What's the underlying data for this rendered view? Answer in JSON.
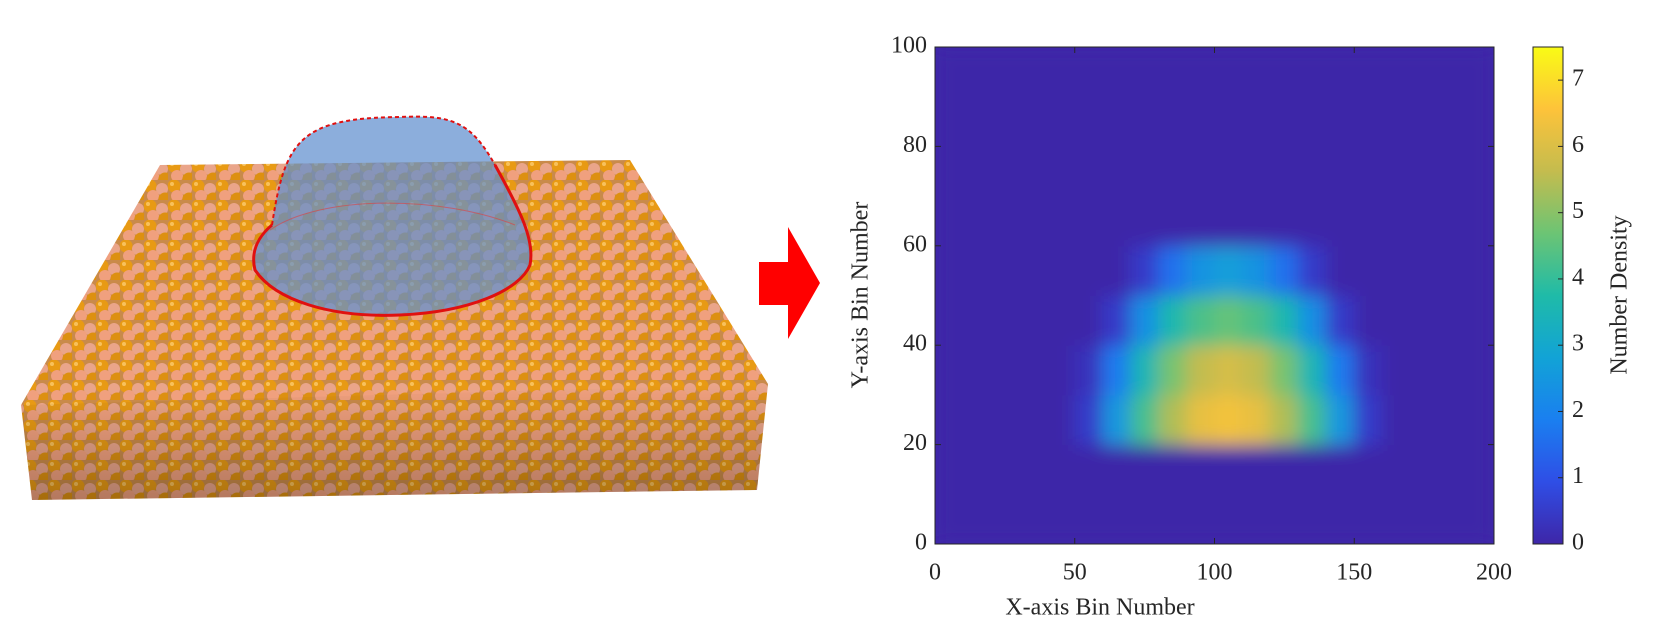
{
  "chart_data": {
    "type": "heatmap",
    "xlabel": "X-axis Bin Number",
    "ylabel": "Y-axis Bin Number",
    "colorbar_label": "Number Density",
    "x": [
      5,
      15,
      25,
      35,
      45,
      55,
      65,
      75,
      85,
      95,
      105,
      115,
      125,
      135,
      145,
      155,
      165,
      175,
      185,
      195
    ],
    "y": [
      5,
      15,
      25,
      35,
      45,
      55,
      65,
      75,
      85,
      95
    ],
    "z": [
      [
        0,
        0,
        0,
        0,
        0,
        0,
        0,
        0,
        0,
        0,
        0,
        0,
        0,
        0,
        0,
        0,
        0,
        0,
        0,
        0
      ],
      [
        0,
        0,
        0,
        0,
        0,
        0,
        0,
        0,
        0,
        0,
        0,
        0,
        0,
        0,
        0,
        0,
        0,
        0,
        0,
        0
      ],
      [
        0,
        0,
        0,
        0,
        0,
        0.5,
        2.5,
        4.2,
        5.4,
        6.2,
        6.4,
        6.2,
        5.4,
        4.2,
        2.5,
        0.5,
        0,
        0,
        0,
        0
      ],
      [
        0,
        0,
        0,
        0,
        0,
        0.3,
        1.8,
        3.5,
        4.8,
        5.6,
        5.9,
        5.6,
        4.8,
        3.5,
        1.8,
        0.3,
        0,
        0,
        0,
        0
      ],
      [
        0,
        0,
        0,
        0,
        0,
        0,
        0.5,
        2.3,
        3.6,
        4.3,
        4.6,
        4.3,
        3.6,
        2.3,
        0.5,
        0,
        0,
        0,
        0,
        0
      ],
      [
        0,
        0,
        0,
        0,
        0,
        0,
        0,
        0.5,
        1.6,
        2.4,
        2.7,
        2.4,
        1.6,
        0.5,
        0,
        0,
        0,
        0,
        0,
        0
      ],
      [
        0,
        0,
        0,
        0,
        0,
        0,
        0,
        0,
        0,
        0,
        0,
        0,
        0,
        0,
        0,
        0,
        0,
        0,
        0,
        0
      ],
      [
        0,
        0,
        0,
        0,
        0,
        0,
        0,
        0,
        0,
        0,
        0,
        0,
        0,
        0,
        0,
        0,
        0,
        0,
        0,
        0
      ],
      [
        0,
        0,
        0,
        0,
        0,
        0,
        0,
        0,
        0,
        0,
        0,
        0,
        0,
        0,
        0,
        0,
        0,
        0,
        0,
        0
      ],
      [
        0,
        0,
        0,
        0,
        0,
        0,
        0,
        0,
        0,
        0,
        0,
        0,
        0,
        0,
        0,
        0,
        0,
        0,
        0,
        0
      ]
    ],
    "xlim": [
      0,
      200
    ],
    "xticks": [
      0,
      50,
      100,
      150,
      200
    ],
    "ylim": [
      0,
      100
    ],
    "yticks": [
      0,
      20,
      40,
      60,
      80,
      100
    ],
    "clim": [
      0,
      7.5
    ],
    "cticks": [
      0,
      1,
      2,
      3,
      4,
      5,
      6,
      7
    ],
    "colormap": [
      "#3e26a8",
      "#2f4ee6",
      "#1a7ff0",
      "#12a3d6",
      "#1fbba8",
      "#6cc474",
      "#c4bc4e",
      "#fdc33a",
      "#f9fb15"
    ]
  }
}
